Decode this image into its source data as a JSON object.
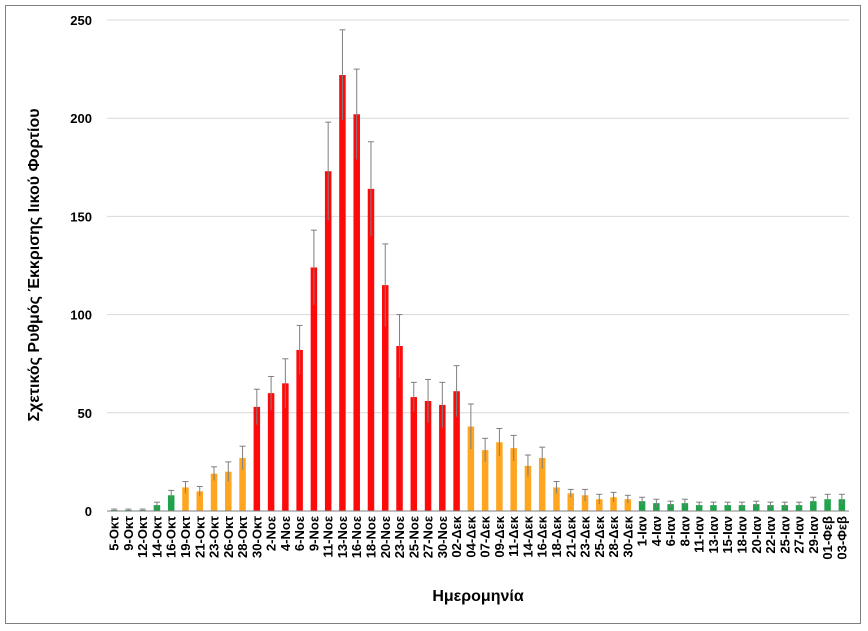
{
  "chart_data": {
    "type": "bar",
    "xlabel": "Ημερομηνία",
    "ylabel": "Σχετικός Ρυθμός Έκκρισης Ιικού Φορτίου",
    "ylim": [
      0,
      250
    ],
    "yticks": [
      0,
      50,
      100,
      150,
      200,
      250
    ],
    "grid": "horizontal",
    "legend": "none",
    "colors": {
      "green": "#1fa34a",
      "orange": "#ffa51f",
      "red": "#ff0a0a",
      "error": "#7f7f7f"
    },
    "categories": [
      "5-Οκτ",
      "9-Οκτ",
      "12-Οκτ",
      "14-Οκτ",
      "16-Οκτ",
      "19-Οκτ",
      "21-Οκτ",
      "23-Οκτ",
      "26-Οκτ",
      "28-Οκτ",
      "30-Οκτ",
      "2-Νοε",
      "4-Νοε",
      "6-Νοε",
      "9-Νοε",
      "11-Νοε",
      "13-Νοε",
      "16-Νοε",
      "18-Νοε",
      "20-Νοε",
      "23-Νοε",
      "25-Νοε",
      "27-Νοε",
      "30-Νοε",
      "02-Δεκ",
      "04-Δεκ",
      "07-Δεκ",
      "09-Δεκ",
      "11-Δεκ",
      "14-Δεκ",
      "16-Δεκ",
      "18-Δεκ",
      "21-Δεκ",
      "23-Δεκ",
      "25-Δεκ",
      "28-Δεκ",
      "30-Δεκ",
      "1-Ιαν",
      "4-Ιαν",
      "6-Ιαν",
      "8-Ιαν",
      "11-Ιαν",
      "13-Ιαν",
      "15-Ιαν",
      "18-Ιαν",
      "20-Ιαν",
      "22-Ιαν",
      "25-Ιαν",
      "27-Ιαν",
      "29-Ιαν",
      "01-Φεβ",
      "03-Φεβ"
    ],
    "values": [
      0.5,
      0.5,
      0.5,
      3,
      8,
      12,
      10,
      19,
      20,
      27,
      53,
      60,
      65,
      82,
      124,
      173,
      222,
      202,
      164,
      115,
      84,
      58,
      56,
      54,
      61,
      43,
      31,
      35,
      32,
      23,
      27,
      12,
      9,
      8,
      6,
      7,
      6,
      5,
      4,
      3.5,
      4,
      3,
      3,
      3,
      3,
      3.5,
      3,
      3,
      3,
      5,
      6,
      6
    ],
    "errors": [
      0.5,
      0.5,
      0.5,
      1.5,
      2.5,
      3,
      2.5,
      3.5,
      5,
      6,
      9,
      8.5,
      12.5,
      12.5,
      19,
      25,
      23,
      23,
      24,
      21,
      16,
      7.5,
      11,
      11.5,
      13,
      11.5,
      6,
      7,
      6.5,
      5.5,
      5.5,
      3,
      2,
      3,
      2.5,
      2.5,
      2,
      2,
      2,
      1.5,
      2,
      1.5,
      1.5,
      1.5,
      1.5,
      1.5,
      1.5,
      1.5,
      1.5,
      2,
      2.5,
      2.5
    ],
    "bar_colors": [
      "green",
      "green",
      "green",
      "green",
      "green",
      "orange",
      "orange",
      "orange",
      "orange",
      "orange",
      "red",
      "red",
      "red",
      "red",
      "red",
      "red",
      "red",
      "red",
      "red",
      "red",
      "red",
      "red",
      "red",
      "red",
      "red",
      "orange",
      "orange",
      "orange",
      "orange",
      "orange",
      "orange",
      "orange",
      "orange",
      "orange",
      "orange",
      "orange",
      "orange",
      "green",
      "green",
      "green",
      "green",
      "green",
      "green",
      "green",
      "green",
      "green",
      "green",
      "green",
      "green",
      "green",
      "green",
      "green"
    ]
  }
}
